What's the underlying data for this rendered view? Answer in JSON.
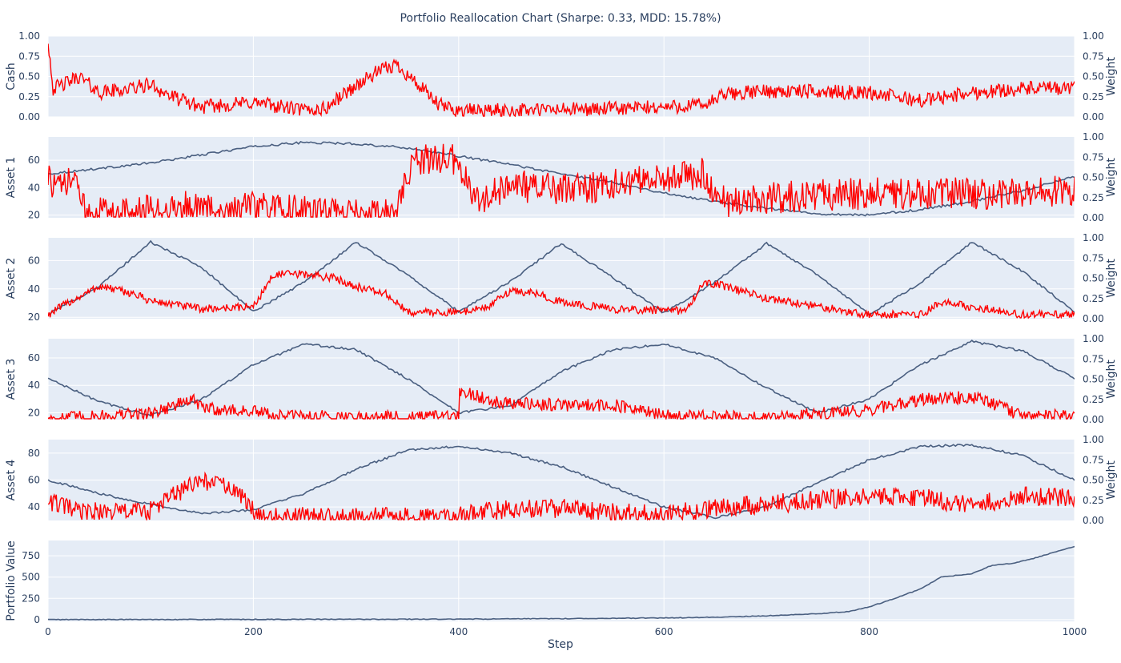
{
  "title": "Portfolio Reallocation Chart (Sharpe: 0.33, MDD: 15.78%)",
  "xlabel": "Step",
  "colors": {
    "price": "#4a5f80",
    "weight": "#ff0000",
    "plot_bg": "#e5ecf6",
    "grid": "#ffffff",
    "text": "#2a3f5f"
  },
  "chart_data": {
    "type": "line",
    "x_range": [
      0,
      1000
    ],
    "x_ticks": [
      "0",
      "200",
      "400",
      "600",
      "800",
      "1000"
    ],
    "x_tick_values": [
      0,
      200,
      400,
      600,
      800,
      1000
    ],
    "weight_axis": {
      "label": "Weight",
      "ylim": [
        0,
        1
      ],
      "ticks": [
        "0.00",
        "0.25",
        "0.50",
        "0.75",
        "1.00"
      ],
      "tick_values": [
        0,
        0.25,
        0.5,
        0.75,
        1.0
      ]
    },
    "panels": [
      {
        "ylabel": "Cash",
        "ylim": [
          0,
          1
        ],
        "y_ticks": [
          "0.00",
          "0.25",
          "0.50",
          "0.75",
          "1.00"
        ],
        "y_tick_values": [
          0,
          0.25,
          0.5,
          0.75,
          1.0
        ],
        "has_weight_axis": true,
        "price": null,
        "weight": {
          "x": [
            0,
            5,
            15,
            30,
            50,
            80,
            100,
            120,
            150,
            200,
            250,
            270,
            290,
            320,
            340,
            360,
            380,
            400,
            450,
            550,
            600,
            640,
            660,
            700,
            800,
            850,
            900,
            950,
            1000
          ],
          "y": [
            0.95,
            0.35,
            0.4,
            0.5,
            0.3,
            0.35,
            0.4,
            0.25,
            0.12,
            0.18,
            0.08,
            0.1,
            0.3,
            0.55,
            0.65,
            0.4,
            0.15,
            0.08,
            0.08,
            0.1,
            0.12,
            0.15,
            0.28,
            0.32,
            0.3,
            0.2,
            0.3,
            0.35,
            0.35
          ],
          "noise": 0.09
        }
      },
      {
        "ylabel": "Asset 1",
        "ylim": [
          18,
          77
        ],
        "y_ticks": [
          "20",
          "40",
          "60"
        ],
        "y_tick_values": [
          20,
          40,
          60
        ],
        "has_weight_axis": true,
        "price": {
          "x": [
            0,
            50,
            100,
            150,
            200,
            250,
            300,
            350,
            400,
            450,
            500,
            550,
            600,
            650,
            700,
            750,
            800,
            850,
            900,
            950,
            1000
          ],
          "y": [
            50,
            54,
            58,
            64,
            70,
            73,
            72,
            69,
            63,
            57,
            50,
            44,
            36,
            30,
            25,
            21,
            20,
            24,
            30,
            38,
            48
          ],
          "noise": 0.8
        },
        "weight": {
          "x": [
            0,
            10,
            30,
            32,
            60,
            100,
            140,
            160,
            200,
            220,
            300,
            330,
            340,
            350,
            360,
            380,
            400,
            410,
            420,
            450,
            500,
            550,
            600,
            640,
            650,
            660,
            700,
            800,
            900,
            950,
            1000
          ],
          "y": [
            0.5,
            0.35,
            0.5,
            0.1,
            0.07,
            0.08,
            0.15,
            0.1,
            0.12,
            0.1,
            0.05,
            0.03,
            0.1,
            0.5,
            0.7,
            0.75,
            0.7,
            0.4,
            0.2,
            0.4,
            0.35,
            0.4,
            0.5,
            0.55,
            0.3,
            0.2,
            0.25,
            0.3,
            0.3,
            0.3,
            0.35
          ],
          "noise": 0.2
        }
      },
      {
        "ylabel": "Asset 2",
        "ylim": [
          19,
          76
        ],
        "y_ticks": [
          "20",
          "40",
          "60"
        ],
        "y_tick_values": [
          20,
          40,
          60
        ],
        "has_weight_axis": true,
        "price": {
          "x": [
            0,
            50,
            100,
            150,
            200,
            250,
            300,
            350,
            400,
            450,
            500,
            550,
            600,
            650,
            700,
            750,
            800,
            850,
            900,
            950,
            1000
          ],
          "y": [
            22,
            42,
            73,
            55,
            24,
            45,
            73,
            50,
            24,
            45,
            72,
            48,
            23,
            45,
            72,
            50,
            22,
            44,
            73,
            52,
            24
          ],
          "noise": 0.8
        },
        "weight": {
          "x": [
            0,
            20,
            50,
            80,
            100,
            150,
            200,
            220,
            250,
            280,
            300,
            330,
            350,
            400,
            430,
            450,
            480,
            500,
            550,
            600,
            620,
            640,
            660,
            700,
            750,
            800,
            850,
            870,
            900,
            950,
            1000
          ],
          "y": [
            0.05,
            0.2,
            0.4,
            0.32,
            0.22,
            0.12,
            0.15,
            0.55,
            0.55,
            0.5,
            0.4,
            0.3,
            0.08,
            0.08,
            0.15,
            0.35,
            0.3,
            0.2,
            0.12,
            0.1,
            0.1,
            0.45,
            0.4,
            0.25,
            0.15,
            0.05,
            0.05,
            0.2,
            0.15,
            0.05,
            0.05
          ],
          "noise": 0.05
        }
      },
      {
        "ylabel": "Asset 3",
        "ylim": [
          15,
          74
        ],
        "y_ticks": [
          "20",
          "40",
          "60"
        ],
        "y_tick_values": [
          20,
          40,
          60
        ],
        "has_weight_axis": true,
        "price": {
          "x": [
            0,
            50,
            100,
            150,
            200,
            250,
            300,
            350,
            400,
            450,
            500,
            550,
            600,
            650,
            700,
            750,
            800,
            850,
            900,
            950,
            1000
          ],
          "y": [
            45,
            28,
            18,
            30,
            55,
            70,
            66,
            45,
            20,
            25,
            50,
            66,
            70,
            60,
            38,
            20,
            30,
            55,
            72,
            65,
            45
          ],
          "noise": 0.8
        },
        "weight": {
          "x": [
            0,
            50,
            100,
            140,
            150,
            170,
            200,
            220,
            300,
            400,
            401,
            430,
            450,
            500,
            550,
            600,
            620,
            700,
            800,
            850,
            900,
            950,
            1000
          ],
          "y": [
            0.02,
            0.04,
            0.08,
            0.25,
            0.15,
            0.12,
            0.1,
            0.05,
            0.03,
            0.03,
            0.35,
            0.25,
            0.2,
            0.18,
            0.18,
            0.05,
            0.04,
            0.02,
            0.12,
            0.25,
            0.28,
            0.05,
            0.05
          ],
          "noise": 0.08
        }
      },
      {
        "ylabel": "Asset 4",
        "ylim": [
          30,
          90
        ],
        "y_ticks": [
          "40",
          "60",
          "80"
        ],
        "y_tick_values": [
          40,
          60,
          80
        ],
        "has_weight_axis": true,
        "price": {
          "x": [
            0,
            50,
            100,
            150,
            200,
            250,
            300,
            350,
            400,
            450,
            500,
            550,
            600,
            650,
            700,
            750,
            800,
            850,
            900,
            950,
            1000
          ],
          "y": [
            60,
            50,
            42,
            35,
            38,
            50,
            68,
            82,
            85,
            80,
            70,
            55,
            40,
            32,
            40,
            58,
            75,
            85,
            86,
            78,
            60
          ],
          "noise": 0.8
        },
        "weight": {
          "x": [
            0,
            30,
            100,
            120,
            150,
            180,
            200,
            220,
            300,
            400,
            450,
            500,
            550,
            600,
            650,
            700,
            800,
            850,
            900,
            950,
            1000
          ],
          "y": [
            0.25,
            0.1,
            0.12,
            0.3,
            0.5,
            0.4,
            0.12,
            0.05,
            0.04,
            0.05,
            0.15,
            0.15,
            0.1,
            0.08,
            0.15,
            0.2,
            0.3,
            0.28,
            0.2,
            0.3,
            0.28
          ],
          "noise": 0.12
        }
      },
      {
        "ylabel": "Portfolio Value",
        "ylim": [
          -20,
          930
        ],
        "y_ticks": [
          "0",
          "250",
          "500",
          "750"
        ],
        "y_tick_values": [
          0,
          250,
          500,
          750
        ],
        "has_weight_axis": false,
        "price": {
          "x": [
            0,
            200,
            400,
            500,
            600,
            650,
            700,
            750,
            780,
            800,
            820,
            850,
            870,
            900,
            920,
            940,
            960,
            1000
          ],
          "y": [
            1,
            3,
            6,
            12,
            20,
            28,
            45,
            70,
            95,
            150,
            230,
            360,
            500,
            540,
            640,
            660,
            720,
            860
          ],
          "noise": 4
        },
        "weight": null
      }
    ]
  }
}
